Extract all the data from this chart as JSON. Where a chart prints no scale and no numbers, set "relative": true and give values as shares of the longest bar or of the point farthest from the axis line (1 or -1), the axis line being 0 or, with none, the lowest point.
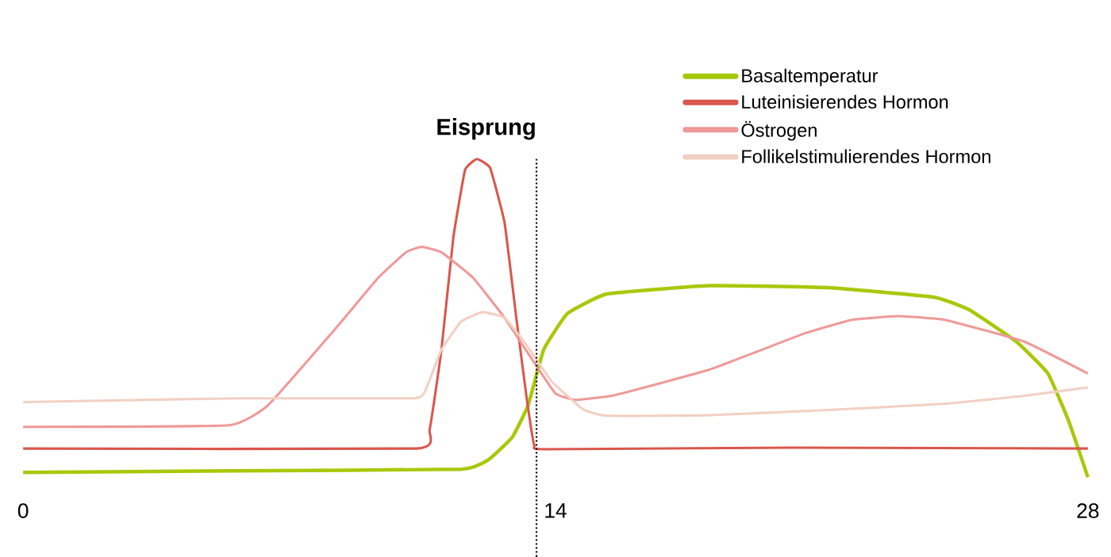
{
  "chart_data": {
    "type": "line",
    "relative": true,
    "xlim": [
      0,
      28
    ],
    "xticks": [
      0,
      14,
      28
    ],
    "legend": "top right",
    "ref_lines": [
      {
        "axis": "x",
        "value": 13.5,
        "label": "Eisprung",
        "color": "#000000",
        "line_style": "dotted"
      }
    ],
    "series": [
      {
        "name": "Basaltemperatur",
        "color": "#a8c80a",
        "x": [
          0,
          5.61,
          11.52,
          12.24,
          12.86,
          13.28,
          13.69,
          14.31,
          15.35,
          18.04,
          21.15,
          23.95,
          24.88,
          26.12,
          26.95,
          27.5,
          28
        ],
        "values": [
          0.015,
          0.02,
          0.025,
          0.055,
          0.125,
          0.226,
          0.401,
          0.514,
          0.576,
          0.602,
          0.596,
          0.566,
          0.526,
          0.426,
          0.326,
          0.175,
          0
        ]
      },
      {
        "name": "Luteinisierendes Hormon",
        "color": "#d9574d",
        "x": [
          0,
          10.34,
          10.69,
          11.0,
          11.31,
          11.62,
          11.93,
          12.28,
          12.66,
          12.97,
          13.24,
          13.44,
          13.69,
          20.11,
          28
        ],
        "values": [
          0.09,
          0.09,
          0.15,
          0.4,
          0.75,
          0.965,
          1,
          0.972,
          0.8,
          0.5,
          0.25,
          0.1,
          0.088,
          0.093,
          0.09
        ]
      },
      {
        "name": "Östrogen",
        "color": "#ee9a98",
        "x": [
          0,
          5.41,
          6.44,
          8.1,
          9.34,
          10.07,
          10.48,
          11.0,
          11.83,
          12.66,
          13.49,
          14.0,
          14.52,
          15.56,
          18.04,
          20.53,
          21.77,
          23.01,
          24.26,
          26.33,
          28
        ],
        "values": [
          0.158,
          0.163,
          0.226,
          0.451,
          0.627,
          0.707,
          0.724,
          0.707,
          0.627,
          0.501,
          0.351,
          0.263,
          0.243,
          0.258,
          0.338,
          0.451,
          0.494,
          0.506,
          0.494,
          0.426,
          0.326
        ]
      },
      {
        "name": "Follikelstimulierendes Hormon",
        "color": "#f2d0c2",
        "x": [
          0,
          5.61,
          10.27,
          10.59,
          11.0,
          11.52,
          12.08,
          12.66,
          13.17,
          13.9,
          14.73,
          15.35,
          18.04,
          21.15,
          24.26,
          26.33,
          28
        ],
        "values": [
          0.236,
          0.248,
          0.248,
          0.276,
          0.401,
          0.489,
          0.519,
          0.501,
          0.426,
          0.301,
          0.213,
          0.193,
          0.195,
          0.211,
          0.231,
          0.256,
          0.282
        ]
      }
    ]
  }
}
